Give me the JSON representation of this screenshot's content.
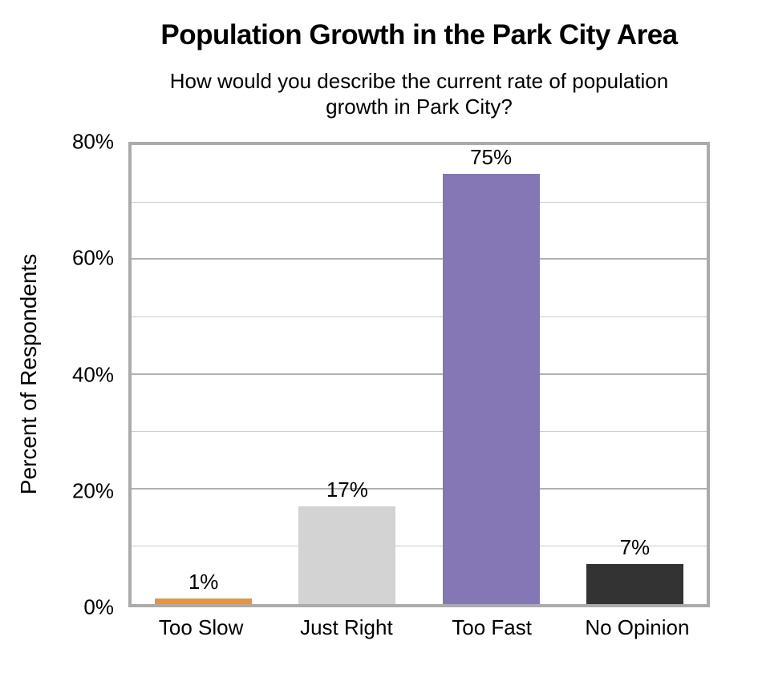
{
  "chart_data": {
    "type": "bar",
    "title": "Population Growth in the Park City Area",
    "subtitle": "How would you describe the current rate of population growth in Park City?",
    "ylabel": "Percent of Respondents",
    "xlabel": "",
    "categories": [
      "Too Slow",
      "Just Right",
      "Too Fast",
      "No Opinion"
    ],
    "values": [
      1,
      17,
      75,
      7
    ],
    "value_labels": [
      "1%",
      "17%",
      "75%",
      "7%"
    ],
    "bar_colors": [
      "#E8943A",
      "#D3D3D3",
      "#8577B5",
      "#333333"
    ],
    "ylim": [
      0,
      80
    ],
    "yticks": [
      0,
      20,
      40,
      60,
      80
    ],
    "ytick_labels": [
      "0%",
      "20%",
      "40%",
      "60%",
      "80%"
    ],
    "grid": "horizontal lines every 10%, darker major lines every 20%",
    "legend_position": "none",
    "colors": {
      "plot_border": "#ABABAB",
      "minor_gridline": "#CDCDCD",
      "major_gridline": "#B1B1B1",
      "text": "#000000",
      "background": "#ffffff"
    }
  }
}
